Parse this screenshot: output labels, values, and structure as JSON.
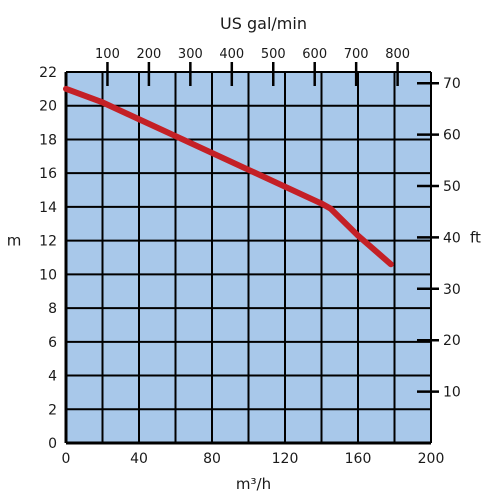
{
  "chart_data": {
    "type": "line",
    "title": "",
    "xlabel": "m³/h",
    "ylabel": "m",
    "top_axis_label": "US gal/min",
    "right_axis_label": "ft",
    "xlim": [
      0,
      200
    ],
    "ylim": [
      0,
      22
    ],
    "x_ticks": [
      "0",
      "40",
      "80",
      "120",
      "160",
      "200"
    ],
    "y_ticks": [
      "0",
      "2",
      "4",
      "6",
      "8",
      "10",
      "12",
      "14",
      "16",
      "18",
      "20",
      "22"
    ],
    "top_ticks": [
      "100",
      "200",
      "300",
      "400",
      "500",
      "600",
      "700",
      "800"
    ],
    "right_ticks": [
      "10",
      "20",
      "30",
      "40",
      "50",
      "60",
      "70"
    ],
    "grid": true,
    "colors": {
      "plot_background": "#a8c8ea",
      "grid": "#000000",
      "curve": "#c42026"
    },
    "series": [
      {
        "x": [
          0,
          20,
          40,
          60,
          80,
          100,
          120,
          140,
          145,
          160,
          178
        ],
        "y": [
          21.0,
          20.2,
          19.2,
          18.2,
          17.2,
          16.2,
          15.2,
          14.2,
          13.9,
          12.3,
          10.6
        ]
      }
    ]
  }
}
